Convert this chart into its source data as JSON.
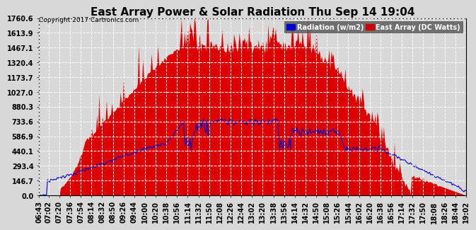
{
  "title": "East Array Power & Solar Radiation Thu Sep 14 19:04",
  "copyright": "Copyright 2017 Cartronics.com",
  "legend_radiation": "Radiation (w/m2)",
  "legend_east_array": "East Array (DC Watts)",
  "legend_radiation_bg": "#0000cc",
  "legend_east_bg": "#cc0000",
  "y_max": 1760.6,
  "y_min": 0.0,
  "y_ticks": [
    0.0,
    146.7,
    293.4,
    440.1,
    586.9,
    733.6,
    880.3,
    1027.0,
    1173.7,
    1320.4,
    1467.1,
    1613.9,
    1760.6
  ],
  "background_color": "#d8d8d8",
  "plot_bg": "#d8d8d8",
  "fill_red": "#dd0000",
  "line_blue": "#0000cc",
  "grid_color": "#ffffff",
  "title_fontsize": 11,
  "tick_fontsize": 7,
  "x_tick_rotation": 90,
  "time_labels": [
    "06:43",
    "07:02",
    "07:20",
    "07:36",
    "07:54",
    "08:14",
    "08:32",
    "08:50",
    "09:26",
    "09:44",
    "10:00",
    "10:20",
    "10:38",
    "10:56",
    "11:14",
    "11:32",
    "11:50",
    "12:08",
    "12:26",
    "12:44",
    "13:02",
    "13:20",
    "13:38",
    "13:56",
    "14:14",
    "14:32",
    "14:50",
    "15:08",
    "15:26",
    "15:44",
    "16:02",
    "16:20",
    "16:38",
    "16:56",
    "17:14",
    "17:32",
    "17:50",
    "18:08",
    "18:26",
    "18:44",
    "19:02"
  ]
}
